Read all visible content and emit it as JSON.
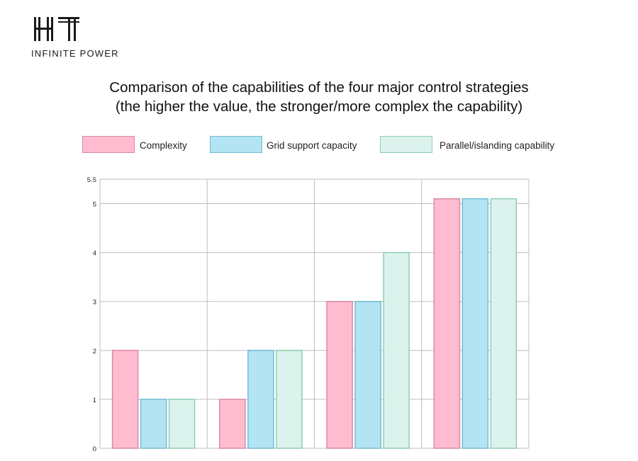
{
  "brand": {
    "logo_letters": "HT",
    "tagline": "INFINITE POWER"
  },
  "title": {
    "line1": "Comparison of the capabilities of the four major control strategies",
    "line2": " (the higher the value, the stronger/more complex the capability)"
  },
  "colors": {
    "complexity_fill": "#ffbcd0",
    "complexity_stroke": "#d98aa3",
    "grid_fill": "#b3e4f4",
    "grid_stroke": "#72bcd4",
    "parallel_fill": "#dcf2ec",
    "parallel_stroke": "#8fcdb4",
    "gridline": "#bdbdbd"
  },
  "chart_data": {
    "type": "bar",
    "categories": [
      "",
      "",
      "",
      ""
    ],
    "series": [
      {
        "name": "Complexity",
        "values": [
          2,
          1,
          3,
          5.1
        ]
      },
      {
        "name": "Grid support capacity",
        "values": [
          1,
          2,
          3,
          5.1
        ]
      },
      {
        "name": "Parallel/islanding capability",
        "values": [
          1,
          2,
          4,
          5.1
        ]
      }
    ],
    "y_ticks": [
      "0",
      "1",
      "2",
      "3",
      "4",
      "5",
      "5.5"
    ],
    "ylim": [
      0,
      5.5
    ],
    "xlabel": "",
    "ylabel": "",
    "grid": true,
    "legend_position": "top"
  }
}
